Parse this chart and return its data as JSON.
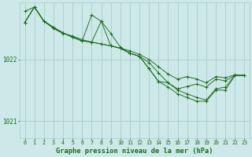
{
  "bg_color": "#cce8e8",
  "grid_color": "#aacccc",
  "line_color": "#1a6b1a",
  "xlabel": "Graphe pression niveau de la mer (hPa)",
  "ylim": [
    1020.72,
    1022.92
  ],
  "xlim": [
    -0.5,
    23.5
  ],
  "yticks": [
    1021,
    1022
  ],
  "xticks": [
    0,
    1,
    2,
    3,
    4,
    5,
    6,
    7,
    8,
    9,
    10,
    11,
    12,
    13,
    14,
    15,
    16,
    17,
    18,
    19,
    20,
    21,
    22,
    23
  ],
  "series": [
    [
      1022.78,
      1022.85,
      1022.62,
      1022.5,
      1022.42,
      1022.38,
      1022.32,
      1022.28,
      1022.25,
      1022.22,
      1022.18,
      1022.14,
      1022.08,
      1022.0,
      1021.88,
      1021.76,
      1021.68,
      1021.72,
      1021.68,
      1021.62,
      1021.72,
      1021.7,
      1021.75,
      1021.74
    ],
    [
      1022.6,
      1022.85,
      1022.62,
      1022.52,
      1022.43,
      1022.36,
      1022.3,
      1022.28,
      1022.62,
      1022.22,
      1022.18,
      1022.1,
      1022.05,
      1021.95,
      1021.78,
      1021.62,
      1021.52,
      1021.56,
      1021.6,
      1021.55,
      1021.68,
      1021.65,
      1021.74,
      1021.74
    ],
    [
      1022.6,
      1022.85,
      1022.62,
      1022.52,
      1022.43,
      1022.36,
      1022.3,
      1022.28,
      1022.25,
      1022.22,
      1022.18,
      1022.1,
      1022.05,
      1021.85,
      1021.64,
      1021.62,
      1021.5,
      1021.44,
      1021.38,
      1021.34,
      1021.52,
      1021.55,
      1021.74,
      1021.74
    ],
    [
      1022.6,
      1022.85,
      1022.62,
      1022.52,
      1022.43,
      1022.36,
      1022.3,
      1022.72,
      1022.62,
      1022.42,
      1022.2,
      1022.1,
      1022.05,
      1021.85,
      1021.64,
      1021.55,
      1021.44,
      1021.38,
      1021.32,
      1021.32,
      1021.5,
      1021.5,
      1021.74,
      1021.74
    ]
  ]
}
